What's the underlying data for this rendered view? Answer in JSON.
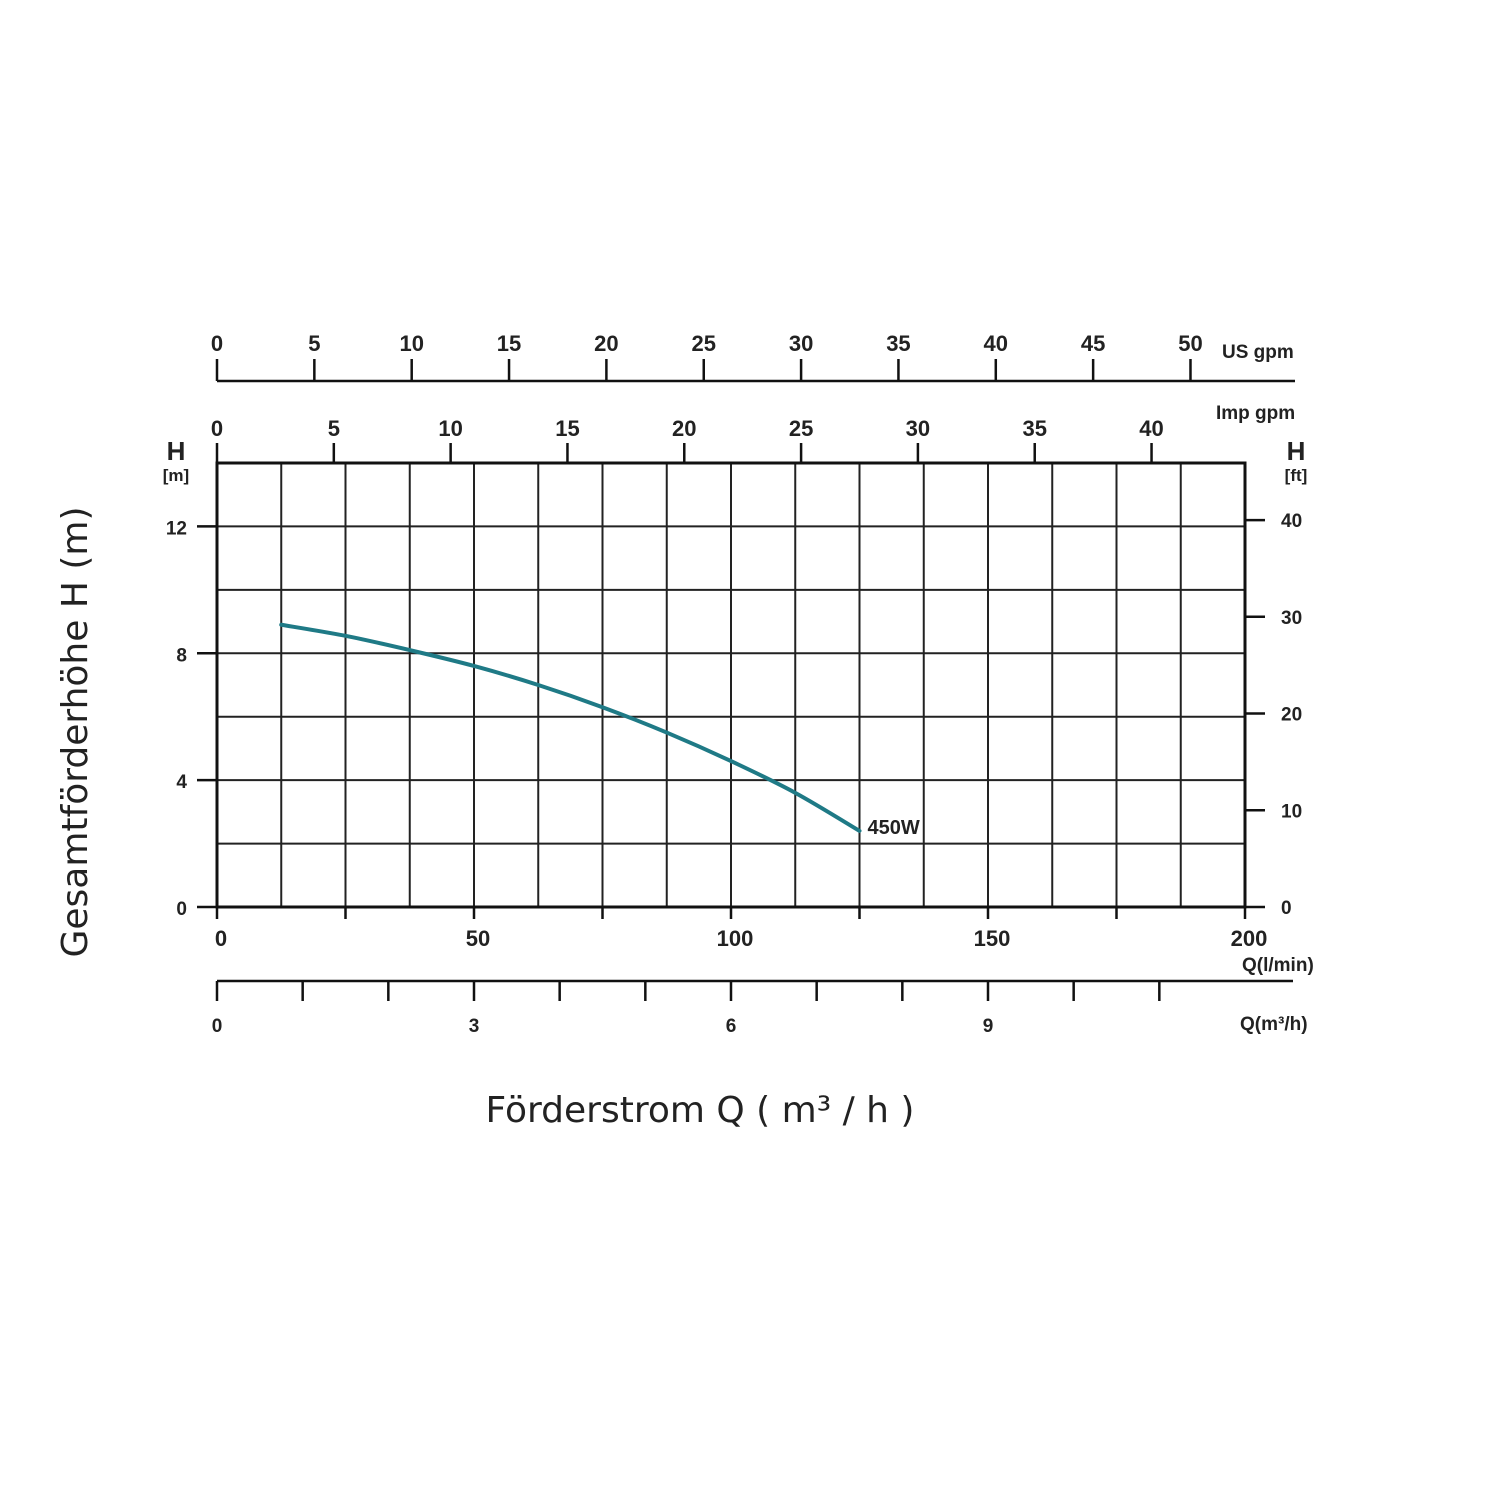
{
  "chart_data": {
    "type": "line",
    "xlabel": "Förderstrom Q ( m³ / h )",
    "ylabel": "Gesamtförderhöhe  H (m)",
    "x_primary": {
      "unit": "Q(l/min)",
      "range": [
        0,
        200
      ],
      "ticks": [
        0,
        50,
        100,
        150,
        200
      ],
      "minor_ticks": [
        25,
        75,
        125,
        175
      ]
    },
    "x_m3h": {
      "unit": "Q(m³/h)",
      "range": [
        0,
        12
      ],
      "ticks": [
        0,
        3,
        6,
        9
      ],
      "minor_ticks": [
        1,
        2,
        4,
        5,
        7,
        8,
        10,
        11
      ]
    },
    "x_us_gpm": {
      "unit": "US gpm",
      "range": [
        0,
        52.8
      ],
      "ticks": [
        0,
        5,
        10,
        15,
        20,
        25,
        30,
        35,
        40,
        45,
        50
      ]
    },
    "x_imp_gpm": {
      "unit": "Imp gpm",
      "range": [
        0,
        44
      ],
      "ticks": [
        0,
        5,
        10,
        15,
        20,
        25,
        30,
        35,
        40
      ]
    },
    "y_left": {
      "letter": "H",
      "unit": "[m]",
      "range": [
        0,
        14
      ],
      "ticks": [
        0,
        4,
        8,
        12
      ]
    },
    "y_right": {
      "letter": "H",
      "unit": "[ft]",
      "range": [
        0,
        45.9
      ],
      "ticks": [
        0,
        10,
        20,
        30,
        40
      ]
    },
    "grid": true,
    "grid_x_step_lmin": 12.5,
    "grid_y_step_m": 2,
    "series": [
      {
        "name": "450W",
        "color": "#1f7a86",
        "x": [
          12.5,
          25,
          37.5,
          50,
          62.5,
          75,
          87.5,
          100,
          112.5,
          125
        ],
        "y": [
          8.9,
          8.55,
          8.1,
          7.6,
          7.0,
          6.3,
          5.5,
          4.6,
          3.6,
          2.4
        ]
      }
    ]
  }
}
